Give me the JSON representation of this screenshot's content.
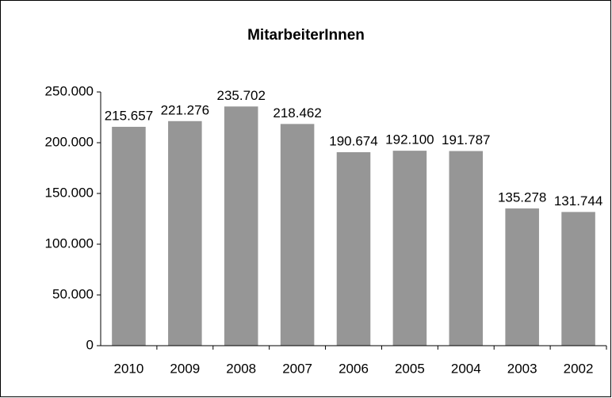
{
  "chart_data": {
    "type": "bar",
    "title": "MitarbeiterInnen",
    "categories": [
      "2010",
      "2009",
      "2008",
      "2007",
      "2006",
      "2005",
      "2004",
      "2003",
      "2002"
    ],
    "values": [
      215657,
      221276,
      235702,
      218462,
      190674,
      192100,
      191787,
      135278,
      131744
    ],
    "value_labels": [
      "215.657",
      "221.276",
      "235.702",
      "218.462",
      "190.674",
      "192.100",
      "191.787",
      "135.278",
      "131.744"
    ],
    "color": "#969696",
    "ylim": [
      0,
      250000
    ],
    "yticks": [
      0,
      {
        "value": 50000,
        "label": "50.000"
      },
      {
        "value": 100000,
        "label": "100.000"
      },
      {
        "value": 150000,
        "label": "150.000"
      },
      {
        "value": 200000,
        "label": "200.000"
      },
      {
        "value": 250000,
        "label": "250.000"
      }
    ],
    "grid": false
  }
}
